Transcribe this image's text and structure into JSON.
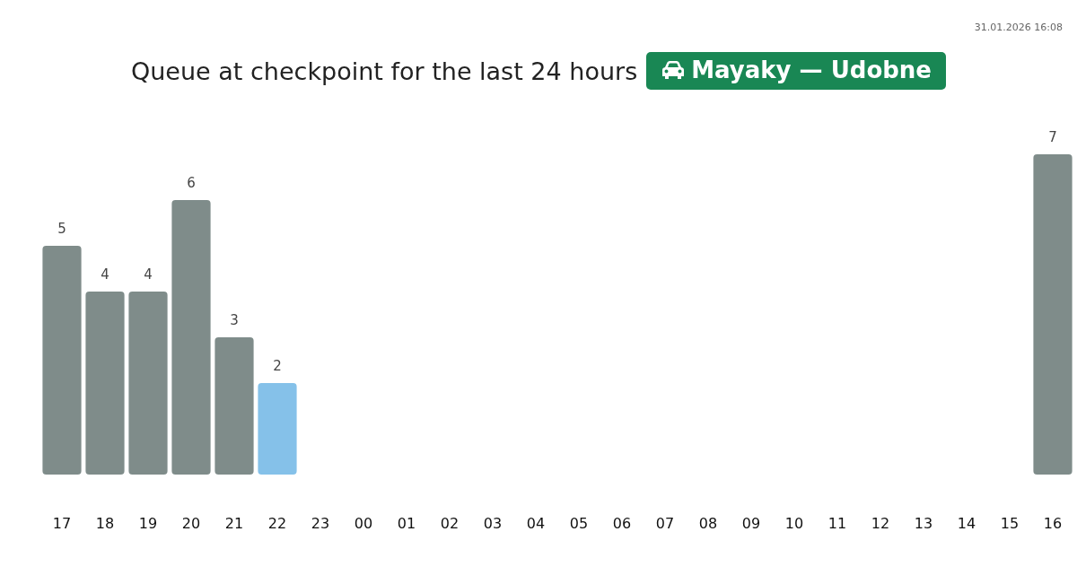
{
  "chart_data": {
    "type": "bar",
    "title": "Queue at checkpoint for the last 24 hours",
    "subtitle": "Mayaky — Udobne",
    "annotations": [
      "31.01.2026 16:08"
    ],
    "categories": [
      "17",
      "18",
      "19",
      "20",
      "21",
      "22",
      "23",
      "00",
      "01",
      "02",
      "03",
      "04",
      "05",
      "06",
      "07",
      "08",
      "09",
      "10",
      "11",
      "12",
      "13",
      "14",
      "15",
      "16"
    ],
    "values": [
      5,
      4,
      4,
      6,
      3,
      2,
      null,
      null,
      null,
      null,
      null,
      null,
      null,
      null,
      null,
      null,
      null,
      null,
      null,
      null,
      null,
      null,
      null,
      7
    ],
    "colors": [
      "#7f8c8a",
      "#7f8c8a",
      "#7f8c8a",
      "#7f8c8a",
      "#7f8c8a",
      "#85c1e9",
      null,
      null,
      null,
      null,
      null,
      null,
      null,
      null,
      null,
      null,
      null,
      null,
      null,
      null,
      null,
      null,
      null,
      "#7f8c8a"
    ],
    "data_labels": true,
    "grid": false
  }
}
